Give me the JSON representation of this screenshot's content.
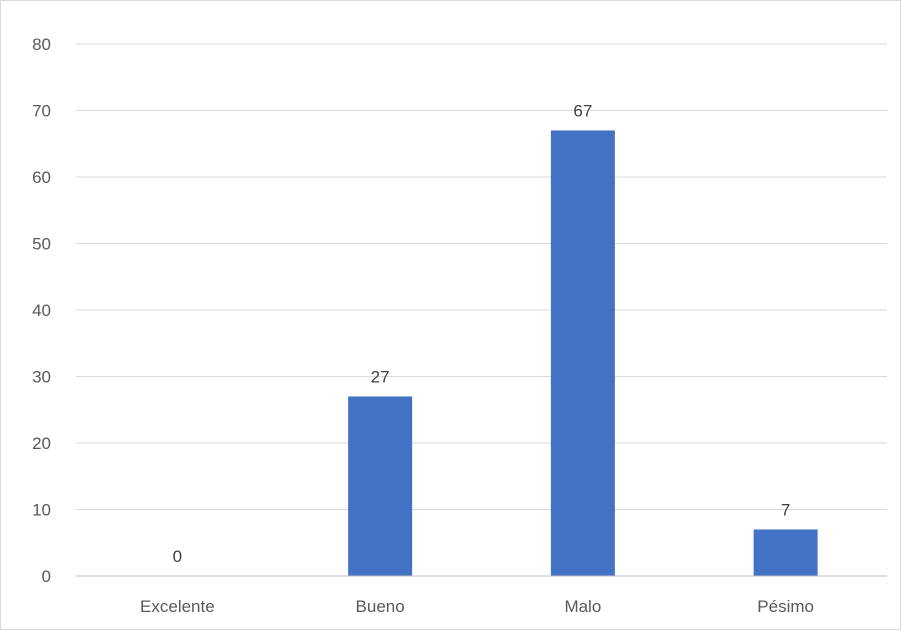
{
  "chart_data": {
    "type": "bar",
    "categories": [
      "Excelente",
      "Bueno",
      "Malo",
      "Pésimo"
    ],
    "values": [
      0,
      27,
      67,
      7
    ],
    "data_labels": [
      "0",
      "27",
      "67",
      "7"
    ],
    "title": "",
    "xlabel": "",
    "ylabel": "",
    "ylim": [
      0,
      80
    ],
    "yticks": [
      0,
      10,
      20,
      30,
      40,
      50,
      60,
      70,
      80
    ],
    "ytick_labels": [
      "0",
      "10",
      "20",
      "30",
      "40",
      "50",
      "60",
      "70",
      "80"
    ],
    "grid": true,
    "legend": "none",
    "colors": {
      "bar": "#4472C4",
      "grid": "#d9d9d9",
      "axis": "#bfbfbf",
      "tick_text": "#595959",
      "label_text": "#404040"
    }
  }
}
